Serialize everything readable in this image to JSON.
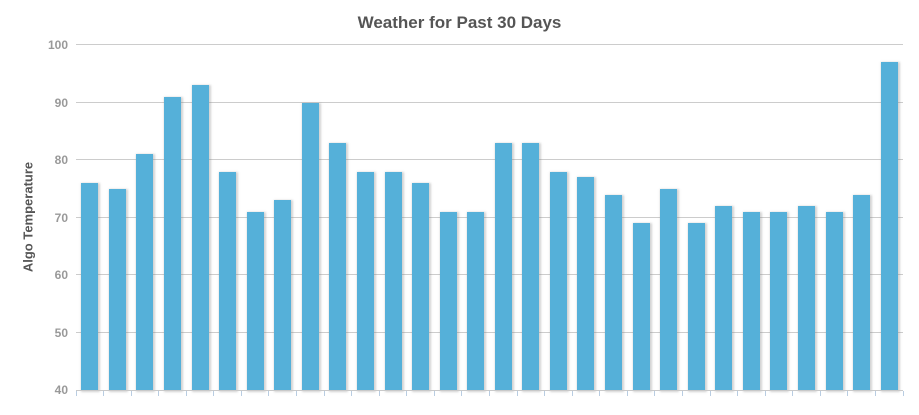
{
  "chart_data": {
    "type": "bar",
    "title": "Weather for Past 30 Days",
    "xlabel": "",
    "ylabel": "Algo Temperature",
    "ylim": [
      40,
      100
    ],
    "yticks": [
      40,
      50,
      60,
      70,
      80,
      90,
      100
    ],
    "grid": "horizontal-only",
    "legend_position": "none",
    "x_tick_labels_visible": false,
    "values": [
      76,
      75,
      81,
      91,
      93,
      78,
      71,
      73,
      90,
      83,
      78,
      78,
      76,
      71,
      71,
      83,
      83,
      78,
      77,
      74,
      69,
      75,
      69,
      72,
      71,
      71,
      72,
      71,
      74,
      97
    ],
    "colors": {
      "bar_fill": "#55b0d9",
      "title_text": "#555555",
      "axis_title_text": "#555555",
      "tick_label_text": "#999999",
      "gridline": "#cccccc",
      "axis_line": "#c9c9c9",
      "tick_mark": "#b9cde2",
      "background": "#ffffff"
    }
  }
}
